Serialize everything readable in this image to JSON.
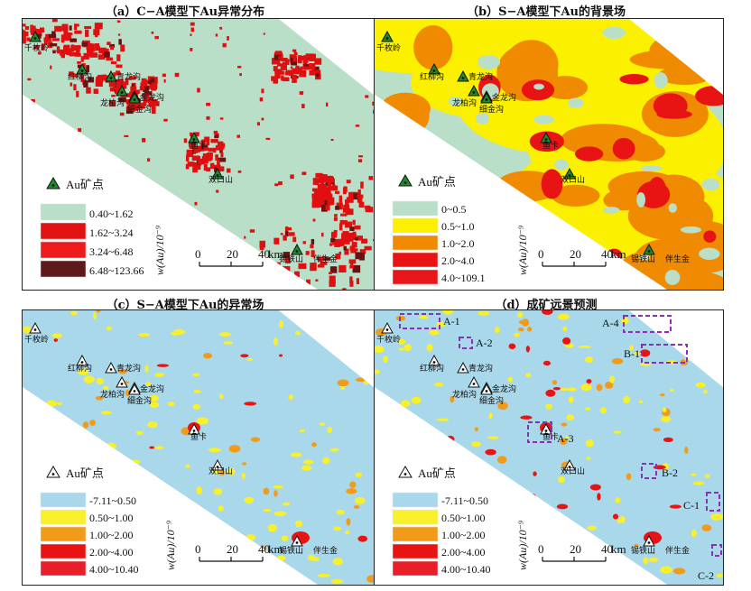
{
  "panels": [
    {
      "id": "a",
      "title": "（a）C−A模型下Au异常分布",
      "palette": {
        "bg": "#b9dfc9",
        "c1": "#b9dfc9",
        "c2": "#e10f10",
        "c3": "#e81818",
        "c4": "#6a1212"
      },
      "legend_title": "Au矿点",
      "legend_items": [
        {
          "label": "0.40~1.62",
          "color": "#b9dfc9"
        },
        {
          "label": "1.62~3.24",
          "color": "#e01212"
        },
        {
          "label": "3.24~6.48",
          "color": "#ec1c1c"
        },
        {
          "label": "6.48~123.66",
          "color": "#5e1a1a"
        }
      ]
    },
    {
      "id": "b",
      "title": "（b）S−A模型下Au的背景场",
      "palette": {
        "bg": "#b9dfc9"
      },
      "legend_title": "Au矿点",
      "legend_items": [
        {
          "label": "0~0.5",
          "color": "#b9dfc9"
        },
        {
          "label": "0.5~1.0",
          "color": "#fbf000"
        },
        {
          "label": "1.0~2.0",
          "color": "#f08a00"
        },
        {
          "label": "2.0~4.0",
          "color": "#e81414"
        },
        {
          "label": "4.0~109.1",
          "color": "#e8161a"
        }
      ]
    },
    {
      "id": "c",
      "title": "（c）S−A模型下Au的异常场",
      "palette": {
        "bg": "#a9d8ea"
      },
      "legend_title": "Au矿点",
      "legend_items": [
        {
          "label": "-7.11~0.50",
          "color": "#a9d8ea"
        },
        {
          "label": "0.50~1.00",
          "color": "#f7f02a"
        },
        {
          "label": "1.00~2.00",
          "color": "#f29a1a"
        },
        {
          "label": "2.00~4.00",
          "color": "#e81414"
        },
        {
          "label": "4.00~10.40",
          "color": "#e81e2a"
        }
      ]
    },
    {
      "id": "d",
      "title": "（d）成矿远景预测",
      "palette": {
        "bg": "#a9d8ea"
      },
      "legend_title": "Au矿点",
      "legend_items": [
        {
          "label": "-7.11~0.50",
          "color": "#a9d8ea"
        },
        {
          "label": "0.50~1.00",
          "color": "#f7f02a"
        },
        {
          "label": "1.00~2.00",
          "color": "#f29a1a"
        },
        {
          "label": "2.00~4.00",
          "color": "#e81414"
        },
        {
          "label": "4.00~10.40",
          "color": "#e81e2a"
        }
      ],
      "zones": [
        "A-1",
        "A-2",
        "A-3",
        "A-4",
        "B-1",
        "B-2",
        "C-1",
        "C-2"
      ]
    }
  ],
  "sites": [
    "千枚岭",
    "红柳沟",
    "青龙沟",
    "龙柏沟",
    "金龙沟",
    "细金沟",
    "鱼卡",
    "双口山",
    "锡铁山",
    "伴生金"
  ],
  "scale": {
    "ticks": [
      "0",
      "20",
      "40"
    ],
    "unit": "km"
  },
  "axis_label": "w(Au)/10⁻⁹"
}
